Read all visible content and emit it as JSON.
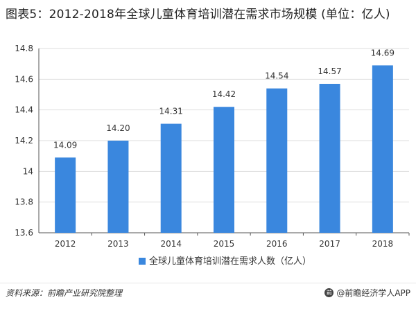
{
  "title": "图表5：2012-2018年全球儿童体育培训潜在需求市场规模 (单位：亿人)",
  "source": "资料来源：前瞻产业研究院整理",
  "brand": "@前瞻经济学人APP",
  "colors": {
    "bar": "#3a87de",
    "grid": "#dddddd",
    "axis": "#555555"
  },
  "chart_data": {
    "type": "bar",
    "categories": [
      "2012",
      "2013",
      "2014",
      "2015",
      "2016",
      "2017",
      "2018"
    ],
    "series": [
      {
        "name": "全球儿童体育培训潜在需求人数（亿人）",
        "values": [
          14.09,
          14.2,
          14.31,
          14.42,
          14.54,
          14.57,
          14.69
        ],
        "labels": [
          "14.09",
          "14.20",
          "14.31",
          "14.42",
          "14.54",
          "14.57",
          "14.69"
        ]
      }
    ],
    "yticks": [
      13.6,
      13.8,
      14,
      14.2,
      14.4,
      14.6,
      14.8
    ],
    "ytick_labels": [
      "13.6",
      "13.8",
      "14",
      "14.2",
      "14.4",
      "14.6",
      "14.8"
    ],
    "ylim": [
      13.6,
      14.8
    ],
    "grid": true,
    "legend_position": "bottom-center"
  }
}
